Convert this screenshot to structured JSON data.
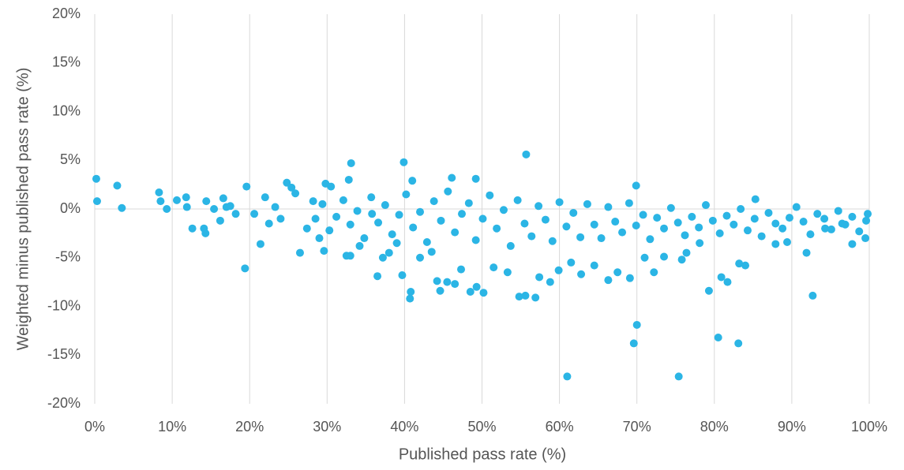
{
  "chart_data": {
    "type": "scatter",
    "xlabel": "Published pass rate (%)",
    "ylabel": "Weighted minus published pass rate (%)",
    "color": "#2bb5e5",
    "grid": true,
    "xlim": [
      0,
      100
    ],
    "ylim": [
      -20,
      20
    ],
    "xticks": [
      {
        "value": 0,
        "label": "0%"
      },
      {
        "value": 10,
        "label": "10%"
      },
      {
        "value": 20,
        "label": "20%"
      },
      {
        "value": 30,
        "label": "30%"
      },
      {
        "value": 40,
        "label": "40%"
      },
      {
        "value": 50,
        "label": "50%"
      },
      {
        "value": 60,
        "label": "60%"
      },
      {
        "value": 70,
        "label": "70%"
      },
      {
        "value": 80,
        "label": "80%"
      },
      {
        "value": 90,
        "label": "90%"
      },
      {
        "value": 100,
        "label": "100%"
      }
    ],
    "yticks": [
      {
        "value": -20,
        "label": "-20%"
      },
      {
        "value": -15,
        "label": "-15%"
      },
      {
        "value": -10,
        "label": "-10%"
      },
      {
        "value": -5,
        "label": "-5%"
      },
      {
        "value": 0,
        "label": "0%"
      },
      {
        "value": 5,
        "label": "5%"
      },
      {
        "value": 10,
        "label": "10%"
      },
      {
        "value": 15,
        "label": "15%"
      },
      {
        "value": 20,
        "label": "20%"
      }
    ],
    "x": [
      0.2,
      0.3,
      2.9,
      3.5,
      8.3,
      8.5,
      9.3,
      10.6,
      11.8,
      11.9,
      12.6,
      14.1,
      14.3,
      14.4,
      15.4,
      16.2,
      16.6,
      17.0,
      17.5,
      18.2,
      19.4,
      19.6,
      20.6,
      21.4,
      22.0,
      22.5,
      23.3,
      24.0,
      24.8,
      25.4,
      25.9,
      26.5,
      27.4,
      28.2,
      29.0,
      29.6,
      29.8,
      30.5,
      32.5,
      33.0,
      32.8,
      33.1,
      34.2,
      35.8,
      36.5,
      37.2,
      38.0,
      39.0,
      39.7,
      39.9,
      40.7,
      40.8,
      41.0,
      42.0,
      43.5,
      44.2,
      44.6,
      45.5,
      46.1,
      46.5,
      47.3,
      48.5,
      49.2,
      49.3,
      50.2,
      51.5,
      53.3,
      54.8,
      55.6,
      55.7,
      56.9,
      57.4,
      58.8,
      59.9,
      61.0,
      61.5,
      62.8,
      64.5,
      66.3,
      67.5,
      69.1,
      69.6,
      70.0,
      69.9,
      71.0,
      72.2,
      73.5,
      75.4,
      75.8,
      76.4,
      78.1,
      79.3,
      80.5,
      80.9,
      81.7,
      83.1,
      83.2,
      84.0,
      85.3,
      87.9,
      89.4,
      91.9,
      92.7,
      94.3,
      96.5,
      97.8,
      99.5,
      99.8,
      28.5,
      29.4,
      30.3,
      31.2,
      32.1,
      33.0,
      33.9,
      34.8,
      35.7,
      36.6,
      37.5,
      38.4,
      39.3,
      40.2,
      41.1,
      42.0,
      42.9,
      43.8,
      44.7,
      45.6,
      46.5,
      47.4,
      48.3,
      49.2,
      50.1,
      51.0,
      51.9,
      52.8,
      53.7,
      54.6,
      55.5,
      56.4,
      57.3,
      58.2,
      59.1,
      60.0,
      60.9,
      61.8,
      62.7,
      63.6,
      64.5,
      65.4,
      66.3,
      67.2,
      68.1,
      69.0,
      69.9,
      70.8,
      71.7,
      72.6,
      73.5,
      74.4,
      75.3,
      76.2,
      77.1,
      78.0,
      78.9,
      79.8,
      80.7,
      81.6,
      82.5,
      83.4,
      84.3,
      85.2,
      86.1,
      87.0,
      87.9,
      88.8,
      89.7,
      90.6,
      91.5,
      92.4,
      93.3,
      94.2,
      95.1,
      96.0,
      96.9,
      97.8,
      98.7,
      99.6
    ],
    "values": [
      3.1,
      0.8,
      2.4,
      0.1,
      1.7,
      0.8,
      0,
      0.9,
      1.2,
      0.2,
      -2.0,
      -2.0,
      -2.5,
      0.8,
      0,
      -1.2,
      1.1,
      0.2,
      0.3,
      -0.5,
      -6.1,
      2.3,
      -0.5,
      -3.6,
      1.2,
      -1.5,
      0.2,
      -1.0,
      2.7,
      2.2,
      1.6,
      -4.5,
      -2.0,
      0.8,
      -3.0,
      -4.3,
      2.6,
      2.3,
      -4.8,
      -4.8,
      3.0,
      4.7,
      -3.8,
      -0.5,
      -6.9,
      -5.0,
      -4.5,
      -3.5,
      -6.8,
      4.8,
      -9.2,
      -8.5,
      2.9,
      -5.0,
      -4.4,
      -7.4,
      -8.4,
      -7.5,
      3.2,
      -7.7,
      -6.2,
      -8.5,
      3.1,
      -8.0,
      -8.6,
      -6.0,
      -6.5,
      -9.0,
      -8.9,
      5.6,
      -9.1,
      -7.0,
      -7.5,
      -6.3,
      -17.2,
      -5.5,
      -6.7,
      -5.8,
      -7.3,
      -6.5,
      -7.1,
      -13.8,
      -11.9,
      2.4,
      -5.0,
      -6.5,
      -4.9,
      -17.2,
      -5.2,
      -4.5,
      -3.5,
      -8.4,
      -13.2,
      -7.0,
      -7.5,
      -13.8,
      -5.6,
      -5.8,
      1.0,
      -3.6,
      -3.4,
      -4.5,
      -8.9,
      -2.0,
      -1.5,
      -3.6,
      -3.0,
      -0.5,
      -1.0,
      0.5,
      -2.2,
      -0.8,
      0.9,
      -1.6,
      -0.2,
      -3.0,
      1.2,
      -1.4,
      0.4,
      -2.6,
      -0.6,
      1.5,
      -1.9,
      -0.3,
      -3.4,
      0.8,
      -1.2,
      1.8,
      -2.4,
      -0.5,
      0.6,
      -3.2,
      -1.0,
      1.4,
      -2.0,
      -0.1,
      -3.8,
      0.9,
      -1.5,
      -2.8,
      0.3,
      -1.1,
      -3.3,
      0.7,
      -1.8,
      -0.4,
      -2.9,
      0.5,
      -1.6,
      -3.0,
      0.2,
      -1.3,
      -2.4,
      0.6,
      -1.7,
      -0.6,
      -3.1,
      -0.9,
      -2.0,
      0.1,
      -1.4,
      -2.7,
      -0.8,
      -1.9,
      0.4,
      -1.2,
      -2.5,
      -0.7,
      -1.6,
      0.0,
      -2.2,
      -1.0,
      -2.8,
      -0.4,
      -1.5,
      -2.0,
      -0.9,
      0.2,
      -1.3,
      -2.6,
      -0.5,
      -1.0,
      -2.1,
      -0.2,
      -1.6,
      -0.8,
      -2.3,
      -1.2
    ]
  }
}
